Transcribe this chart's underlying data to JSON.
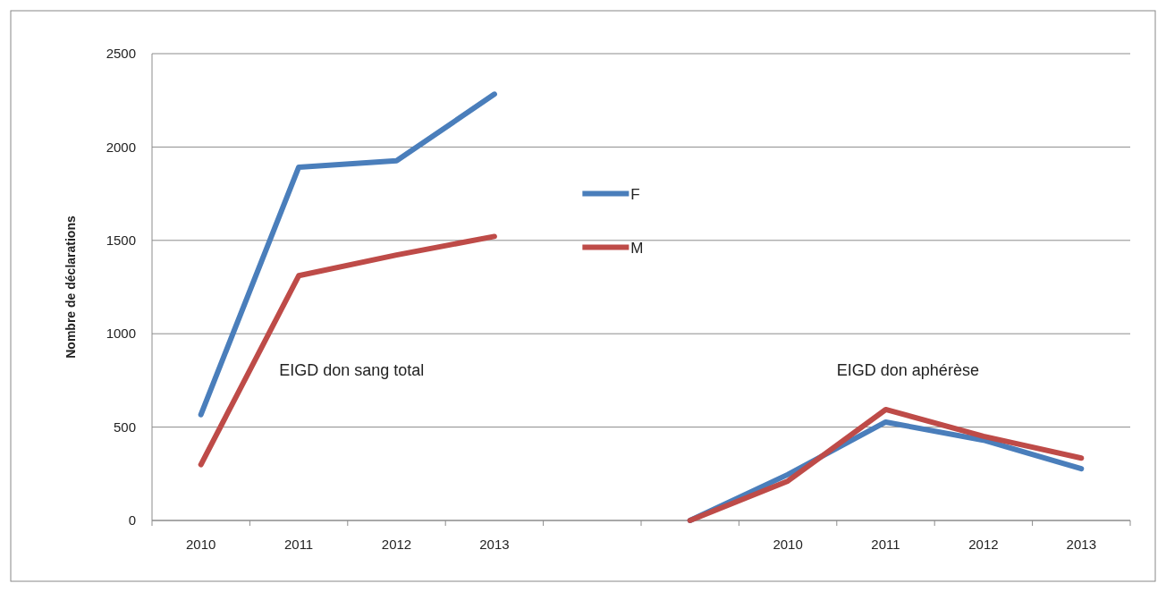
{
  "chart_data": {
    "type": "line",
    "ylabel": "Nombre de déclarations",
    "categories": [
      "2010",
      "2011",
      "2012",
      "2013",
      null,
      null,
      "2010",
      "2011",
      "2012",
      "2013"
    ],
    "series": [
      {
        "name": "F",
        "color": "#4a7ebb",
        "values": [
          567,
          1892,
          1926,
          2283,
          null,
          0,
          246,
          527,
          430,
          277
        ]
      },
      {
        "name": "M",
        "color": "#be4b48",
        "values": [
          299,
          1311,
          1422,
          1521,
          null,
          0,
          211,
          594,
          451,
          334
        ]
      }
    ],
    "ylim": [
      0,
      2500
    ],
    "yticks": [
      0,
      500,
      1000,
      1500,
      2000,
      2500
    ],
    "grid": "y",
    "legend": "top",
    "marker": "none",
    "line_style": "solid",
    "annotations": [
      "EIGD don sang total",
      "EIGD don aphérèse"
    ]
  }
}
